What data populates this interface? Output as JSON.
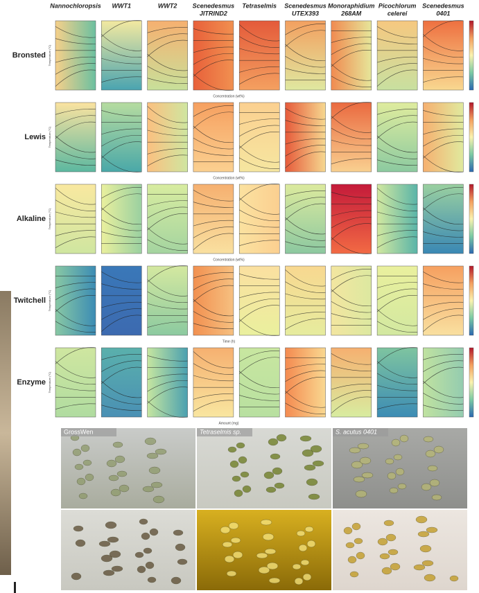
{
  "columns": [
    {
      "lines": [
        "Nannochloropsis"
      ]
    },
    {
      "lines": [
        "WWT1"
      ]
    },
    {
      "lines": [
        "WWT2"
      ]
    },
    {
      "lines": [
        "Scenedesmus",
        "JITRIND2"
      ]
    },
    {
      "lines": [
        "Tetraselmis"
      ]
    },
    {
      "lines": [
        "Scenedesmus",
        "UTEX393"
      ]
    },
    {
      "lines": [
        "Monoraphidium",
        "268AM"
      ]
    },
    {
      "lines": [
        "Picochlorum",
        "celerei"
      ]
    },
    {
      "lines": [
        "Scenedesmus",
        "0401"
      ]
    }
  ],
  "rows": [
    {
      "label": "Bronsted",
      "x_axis_label": "Concentration (wt%)",
      "y_axis_label": "Temperature (°C)"
    },
    {
      "label": "Lewis",
      "x_axis_label": "Concentration (wt%)",
      "y_axis_label": "Temperature (°C)"
    },
    {
      "label": "Alkaline",
      "x_axis_label": "Concentration (wt%)",
      "y_axis_label": "Temperature (°C)"
    },
    {
      "label": "Twitchell",
      "x_axis_label": "Time (h)",
      "y_axis_label": "Temperature (°C)"
    },
    {
      "label": "Enzyme",
      "x_axis_label": "Amount (mg)",
      "y_axis_label": "Temperature (°C)"
    }
  ],
  "micrographs": {
    "labels": [
      "GrossWen",
      "Tetraselmis sp.",
      "S. acutus 0401"
    ]
  }
}
